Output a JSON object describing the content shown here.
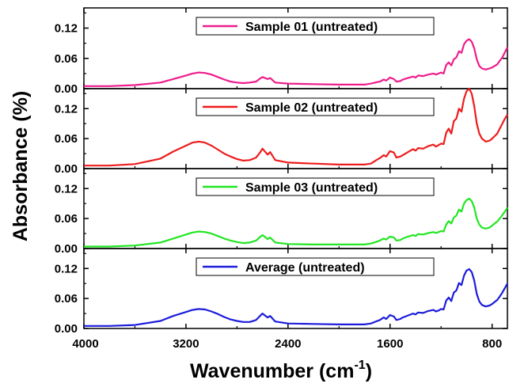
{
  "chart_data": {
    "type": "line",
    "ylabel": "Absorbance (%)",
    "xlabel": "Wavenumber (cm",
    "xlabel_sup": "-1",
    "xlabel_close": ")",
    "x_reversed": true,
    "xlim": [
      4000,
      680
    ],
    "xticks": [
      4000,
      3200,
      2400,
      1600,
      800
    ],
    "xtick_labels": [
      "4000",
      "3200",
      "2400",
      "1600",
      "800"
    ],
    "ylim": [
      0,
      0.16
    ],
    "yticks": [
      0,
      0.06,
      0.12
    ],
    "ytick_labels": [
      "0.00",
      "0.06",
      "0.12"
    ],
    "legend_placement": "top-right",
    "panels": [
      {
        "name": "Sample 01 (untreated)",
        "color": "#ee1c8c",
        "x": [
          4000,
          3800,
          3600,
          3400,
          3300,
          3200,
          3150,
          3100,
          3050,
          3000,
          2950,
          2900,
          2850,
          2800,
          2750,
          2700,
          2650,
          2620,
          2600,
          2560,
          2540,
          2500,
          2400,
          2200,
          2000,
          1800,
          1750,
          1700,
          1680,
          1650,
          1630,
          1600,
          1570,
          1550,
          1520,
          1500,
          1460,
          1420,
          1400,
          1380,
          1340,
          1300,
          1260,
          1240,
          1220,
          1200,
          1180,
          1160,
          1140,
          1120,
          1100,
          1080,
          1060,
          1040,
          1020,
          1000,
          980,
          960,
          940,
          920,
          900,
          880,
          850,
          820,
          800,
          780,
          760,
          740,
          720,
          700,
          680
        ],
        "values": [
          0.005,
          0.005,
          0.007,
          0.012,
          0.019,
          0.026,
          0.03,
          0.032,
          0.031,
          0.028,
          0.023,
          0.018,
          0.014,
          0.012,
          0.011,
          0.012,
          0.014,
          0.02,
          0.023,
          0.019,
          0.021,
          0.012,
          0.01,
          0.009,
          0.008,
          0.008,
          0.01,
          0.013,
          0.014,
          0.018,
          0.016,
          0.022,
          0.019,
          0.014,
          0.015,
          0.018,
          0.021,
          0.024,
          0.022,
          0.026,
          0.025,
          0.028,
          0.03,
          0.028,
          0.03,
          0.032,
          0.03,
          0.047,
          0.052,
          0.046,
          0.058,
          0.062,
          0.074,
          0.071,
          0.088,
          0.095,
          0.098,
          0.093,
          0.08,
          0.058,
          0.045,
          0.04,
          0.038,
          0.04,
          0.042,
          0.045,
          0.048,
          0.055,
          0.062,
          0.072,
          0.082
        ]
      },
      {
        "name": "Sample 02 (untreated)",
        "color": "#ee1c1c",
        "x": [
          4000,
          3800,
          3600,
          3400,
          3300,
          3200,
          3150,
          3100,
          3050,
          3000,
          2950,
          2900,
          2850,
          2800,
          2750,
          2700,
          2650,
          2620,
          2600,
          2560,
          2540,
          2500,
          2400,
          2200,
          2000,
          1800,
          1750,
          1700,
          1680,
          1650,
          1630,
          1600,
          1570,
          1550,
          1520,
          1500,
          1460,
          1420,
          1400,
          1380,
          1340,
          1300,
          1260,
          1240,
          1220,
          1200,
          1180,
          1160,
          1140,
          1120,
          1100,
          1080,
          1060,
          1040,
          1020,
          1000,
          980,
          960,
          940,
          920,
          900,
          880,
          850,
          820,
          800,
          780,
          760,
          740,
          720,
          700,
          680
        ],
        "values": [
          0.006,
          0.006,
          0.009,
          0.02,
          0.034,
          0.046,
          0.052,
          0.054,
          0.052,
          0.046,
          0.038,
          0.03,
          0.024,
          0.019,
          0.016,
          0.017,
          0.022,
          0.032,
          0.04,
          0.028,
          0.033,
          0.017,
          0.012,
          0.01,
          0.008,
          0.008,
          0.01,
          0.018,
          0.021,
          0.027,
          0.024,
          0.035,
          0.032,
          0.022,
          0.024,
          0.027,
          0.033,
          0.039,
          0.036,
          0.041,
          0.04,
          0.045,
          0.048,
          0.044,
          0.047,
          0.05,
          0.049,
          0.072,
          0.08,
          0.07,
          0.095,
          0.1,
          0.12,
          0.114,
          0.14,
          0.155,
          0.16,
          0.15,
          0.125,
          0.09,
          0.07,
          0.06,
          0.054,
          0.056,
          0.06,
          0.065,
          0.07,
          0.08,
          0.09,
          0.1,
          0.108
        ]
      },
      {
        "name": "Sample 03 (untreated)",
        "color": "#22e622",
        "x": [
          4000,
          3800,
          3600,
          3400,
          3300,
          3200,
          3150,
          3100,
          3050,
          3000,
          2950,
          2900,
          2850,
          2800,
          2750,
          2700,
          2650,
          2620,
          2600,
          2560,
          2540,
          2500,
          2400,
          2200,
          2000,
          1800,
          1750,
          1700,
          1680,
          1650,
          1630,
          1600,
          1570,
          1550,
          1520,
          1500,
          1460,
          1420,
          1400,
          1380,
          1340,
          1300,
          1260,
          1240,
          1220,
          1200,
          1180,
          1160,
          1140,
          1120,
          1100,
          1080,
          1060,
          1040,
          1020,
          1000,
          980,
          960,
          940,
          920,
          900,
          880,
          850,
          820,
          800,
          780,
          760,
          740,
          720,
          700,
          680
        ],
        "values": [
          0.004,
          0.004,
          0.006,
          0.012,
          0.02,
          0.028,
          0.032,
          0.034,
          0.033,
          0.03,
          0.025,
          0.02,
          0.016,
          0.013,
          0.011,
          0.012,
          0.016,
          0.023,
          0.027,
          0.019,
          0.022,
          0.012,
          0.009,
          0.008,
          0.008,
          0.008,
          0.01,
          0.014,
          0.016,
          0.02,
          0.018,
          0.024,
          0.022,
          0.016,
          0.017,
          0.02,
          0.024,
          0.027,
          0.025,
          0.029,
          0.028,
          0.031,
          0.033,
          0.031,
          0.033,
          0.035,
          0.034,
          0.048,
          0.055,
          0.05,
          0.062,
          0.066,
          0.078,
          0.074,
          0.09,
          0.097,
          0.1,
          0.095,
          0.082,
          0.06,
          0.048,
          0.042,
          0.04,
          0.042,
          0.046,
          0.05,
          0.054,
          0.06,
          0.067,
          0.074,
          0.082
        ]
      },
      {
        "name": "Average (untreated)",
        "color": "#1c1cdc",
        "x": [
          4000,
          3800,
          3600,
          3400,
          3300,
          3200,
          3150,
          3100,
          3050,
          3000,
          2950,
          2900,
          2850,
          2800,
          2750,
          2700,
          2650,
          2620,
          2600,
          2560,
          2540,
          2500,
          2400,
          2200,
          2000,
          1800,
          1750,
          1700,
          1680,
          1650,
          1630,
          1600,
          1570,
          1550,
          1520,
          1500,
          1460,
          1420,
          1400,
          1380,
          1340,
          1300,
          1260,
          1240,
          1220,
          1200,
          1180,
          1160,
          1140,
          1120,
          1100,
          1080,
          1060,
          1040,
          1020,
          1000,
          980,
          960,
          940,
          920,
          900,
          880,
          850,
          820,
          800,
          780,
          760,
          740,
          720,
          700,
          680
        ],
        "values": [
          0.005,
          0.005,
          0.007,
          0.015,
          0.025,
          0.033,
          0.037,
          0.039,
          0.038,
          0.034,
          0.029,
          0.023,
          0.018,
          0.015,
          0.013,
          0.013,
          0.017,
          0.025,
          0.03,
          0.022,
          0.025,
          0.014,
          0.01,
          0.009,
          0.008,
          0.008,
          0.01,
          0.015,
          0.017,
          0.022,
          0.019,
          0.027,
          0.024,
          0.017,
          0.019,
          0.022,
          0.026,
          0.03,
          0.028,
          0.032,
          0.031,
          0.035,
          0.037,
          0.034,
          0.036,
          0.039,
          0.038,
          0.056,
          0.062,
          0.055,
          0.072,
          0.076,
          0.091,
          0.087,
          0.106,
          0.116,
          0.119,
          0.113,
          0.096,
          0.069,
          0.054,
          0.047,
          0.044,
          0.046,
          0.049,
          0.053,
          0.057,
          0.064,
          0.072,
          0.081,
          0.09
        ]
      }
    ]
  }
}
